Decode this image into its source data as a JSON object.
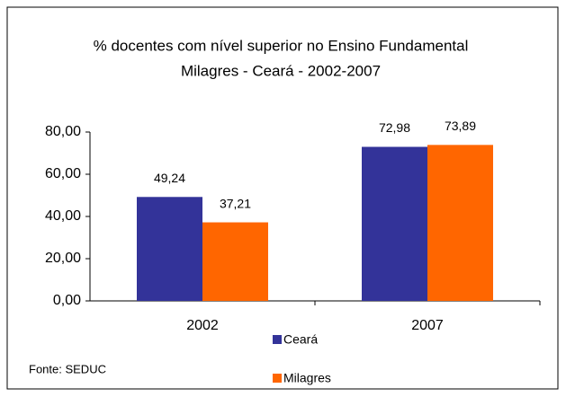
{
  "chart_data": {
    "type": "bar",
    "title": "% docentes com nível superior no Ensino Fundamental",
    "subtitle": "Milagres  - Ceará - 2002-2007",
    "categories": [
      "2002",
      "2007"
    ],
    "series": [
      {
        "name": "Ceará",
        "color": "#333399",
        "values": [
          49.24,
          72.98
        ],
        "value_labels": [
          "49,24",
          "72,98"
        ]
      },
      {
        "name": "Milagres",
        "color": "#ff6600",
        "values": [
          37.21,
          73.89
        ],
        "value_labels": [
          "37,21",
          "73,89"
        ]
      }
    ],
    "ylim": [
      0,
      80
    ],
    "yticks": [
      {
        "value": 0,
        "label": "0,00"
      },
      {
        "value": 20,
        "label": "20,00"
      },
      {
        "value": 40,
        "label": "40,00"
      },
      {
        "value": 60,
        "label": "60,00"
      },
      {
        "value": 80,
        "label": "80,00"
      }
    ],
    "grid": false,
    "legend": "bottom",
    "source": "Fonte: SEDUC"
  }
}
